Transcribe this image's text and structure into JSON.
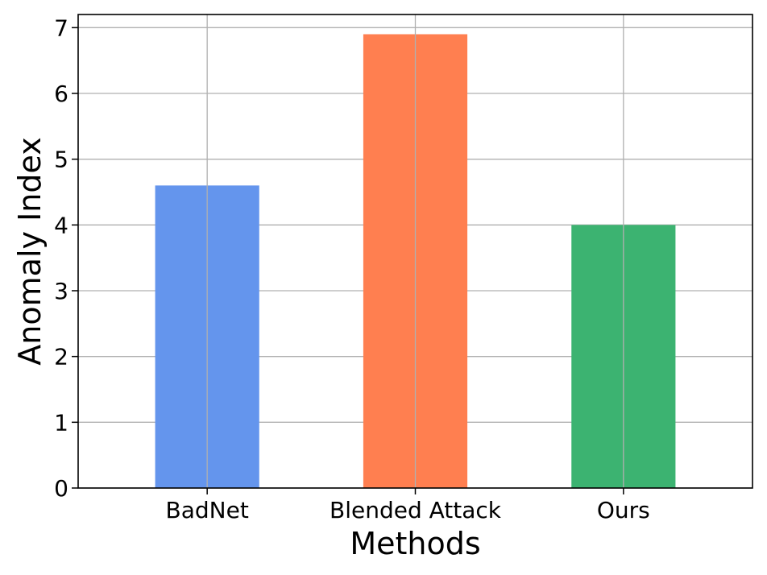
{
  "chart_data": {
    "type": "bar",
    "title": "",
    "xlabel": "Methods",
    "ylabel": "Anomaly Index",
    "categories": [
      "BadNet",
      "Blended Attack",
      "Ours"
    ],
    "values": [
      4.6,
      6.9,
      4.0
    ],
    "colors": [
      "#6495ED",
      "#FF7F50",
      "#3CB371"
    ],
    "ylim": [
      0,
      7.2
    ],
    "yticks": [
      0,
      1,
      2,
      3,
      4,
      5,
      6,
      7
    ],
    "ytick_labels": [
      "0",
      "1",
      "2",
      "3",
      "4",
      "5",
      "6",
      "7"
    ],
    "grid": true,
    "grid_color": "#b0b0b0",
    "legend": "none"
  }
}
